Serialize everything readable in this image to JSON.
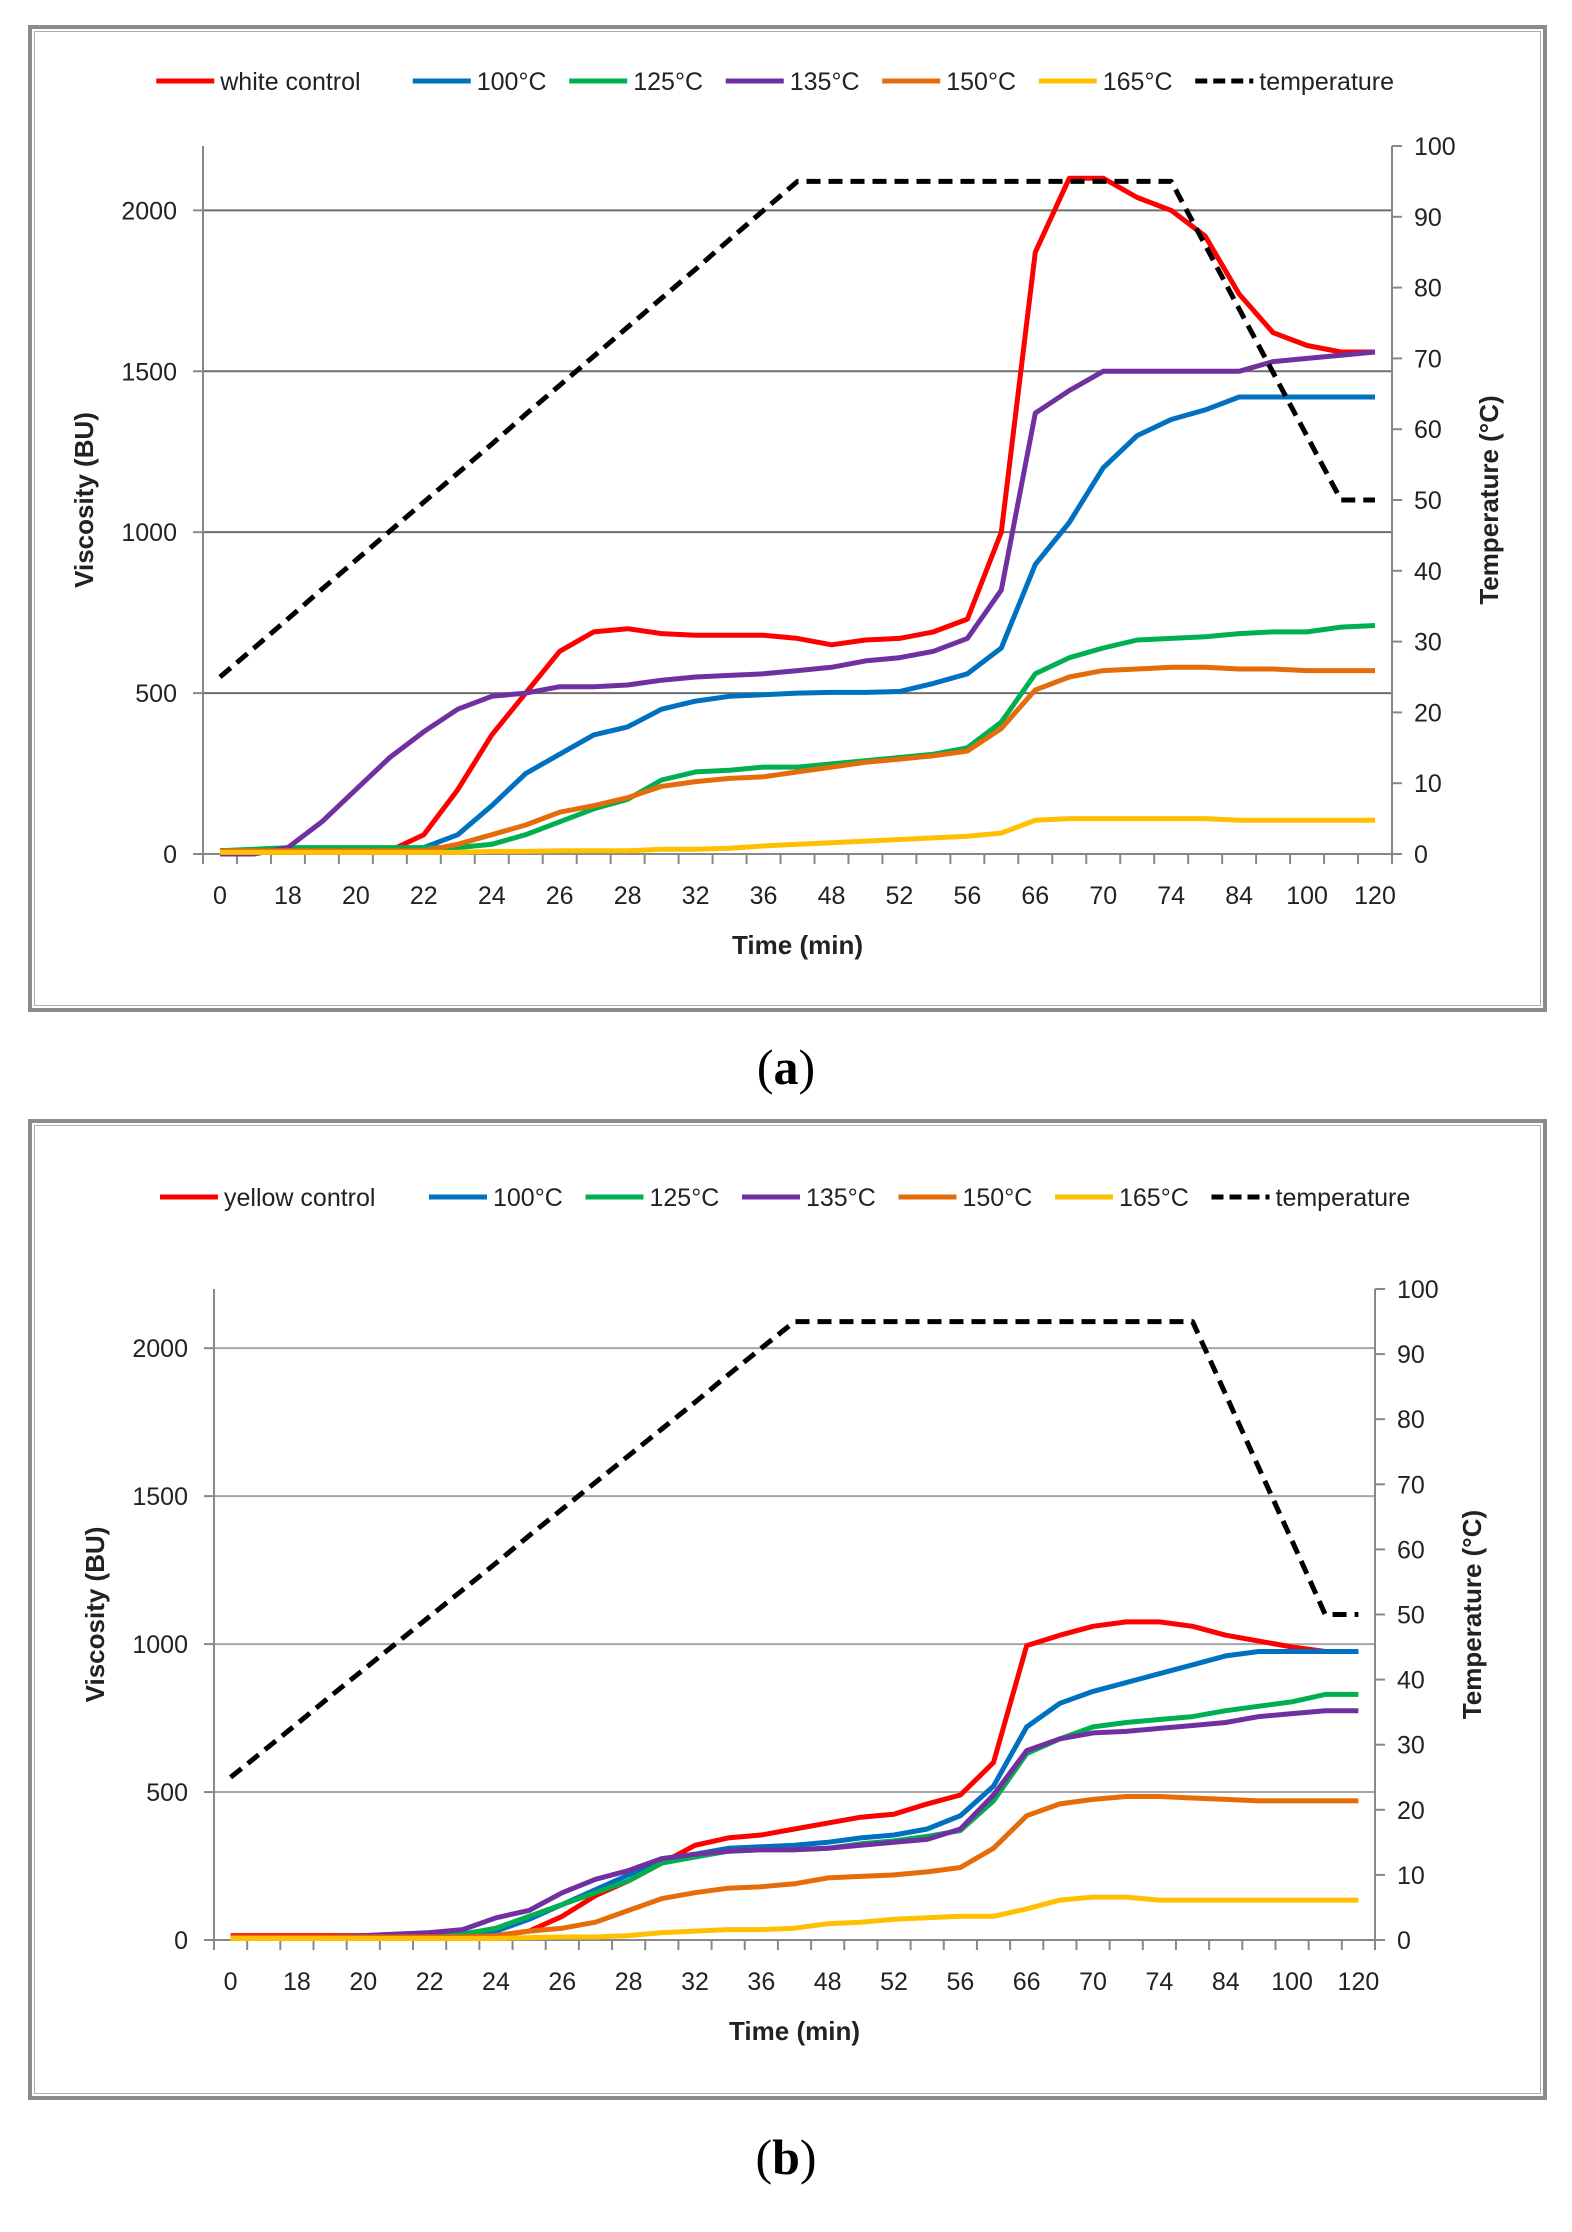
{
  "panels": [
    {
      "label_open": "(",
      "label_letter": "a",
      "label_close": ")"
    },
    {
      "label_open": "(",
      "label_letter": "b",
      "label_close": ")"
    }
  ],
  "chart_data": [
    {
      "type": "line",
      "xlabel": "Time (min)",
      "ylabel": "Viscosity (BU)",
      "y2label": "Temperature (°C)",
      "ylim": [
        0,
        2200
      ],
      "y2lim": [
        0,
        100
      ],
      "yticks": [
        0,
        500,
        1000,
        1500,
        2000
      ],
      "y2ticks": [
        0,
        10,
        20,
        30,
        40,
        50,
        60,
        70,
        80,
        90,
        100
      ],
      "x_tick_labels": [
        "0",
        "18",
        "20",
        "22",
        "24",
        "26",
        "28",
        "32",
        "36",
        "48",
        "52",
        "56",
        "66",
        "70",
        "74",
        "84",
        "100",
        "120"
      ],
      "n_points": 35,
      "grid": "horizontal",
      "legend_position": "top",
      "series": [
        {
          "name": "white control",
          "color": "#ff0000",
          "style": "solid",
          "axis": "left",
          "values": [
            10,
            10,
            10,
            10,
            10,
            10,
            60,
            200,
            370,
            500,
            630,
            690,
            700,
            685,
            680,
            680,
            680,
            670,
            650,
            665,
            670,
            690,
            730,
            1000,
            1870,
            2100,
            2100,
            2040,
            2000,
            1920,
            1740,
            1620,
            1580,
            1560,
            1560
          ]
        },
        {
          "name": "100°C",
          "color": "#0070c0",
          "style": "solid",
          "axis": "left",
          "values": [
            10,
            10,
            10,
            10,
            10,
            10,
            20,
            60,
            150,
            250,
            310,
            370,
            395,
            450,
            475,
            490,
            495,
            500,
            502,
            502,
            505,
            530,
            560,
            640,
            900,
            1030,
            1200,
            1300,
            1350,
            1380,
            1420,
            1420,
            1420,
            1420,
            1420
          ]
        },
        {
          "name": "125°C",
          "color": "#00b050",
          "style": "solid",
          "axis": "left",
          "values": [
            10,
            15,
            20,
            20,
            20,
            20,
            20,
            20,
            30,
            60,
            100,
            140,
            170,
            230,
            255,
            260,
            270,
            270,
            280,
            290,
            300,
            310,
            330,
            410,
            560,
            610,
            640,
            665,
            670,
            675,
            685,
            690,
            690,
            705,
            710
          ]
        },
        {
          "name": "135°C",
          "color": "#7030a0",
          "style": "solid",
          "axis": "left",
          "values": [
            0,
            0,
            20,
            100,
            200,
            300,
            380,
            450,
            490,
            500,
            520,
            520,
            525,
            540,
            550,
            555,
            560,
            570,
            580,
            600,
            610,
            630,
            670,
            820,
            1370,
            1440,
            1500,
            1500,
            1500,
            1500,
            1500,
            1530,
            1540,
            1550,
            1560
          ]
        },
        {
          "name": "150°C",
          "color": "#e46c0a",
          "style": "solid",
          "axis": "left",
          "values": [
            10,
            10,
            10,
            10,
            10,
            10,
            10,
            30,
            60,
            90,
            130,
            150,
            175,
            210,
            225,
            235,
            240,
            255,
            270,
            285,
            295,
            305,
            320,
            390,
            510,
            550,
            570,
            575,
            580,
            580,
            575,
            575,
            570,
            570,
            570
          ]
        },
        {
          "name": "165°C",
          "color": "#ffc000",
          "style": "solid",
          "axis": "left",
          "values": [
            5,
            5,
            5,
            5,
            5,
            5,
            5,
            5,
            8,
            8,
            10,
            10,
            10,
            15,
            15,
            18,
            25,
            30,
            35,
            40,
            45,
            50,
            55,
            65,
            105,
            110,
            110,
            110,
            110,
            110,
            105,
            105,
            105,
            105,
            105
          ]
        },
        {
          "name": "temperature",
          "color": "#000000",
          "style": "dashed",
          "axis": "right",
          "values": [
            25,
            29.1,
            33.2,
            37.4,
            41.5,
            45.6,
            49.7,
            53.8,
            57.9,
            62.1,
            66.2,
            70.3,
            74.4,
            78.5,
            82.6,
            86.8,
            90.9,
            95,
            95,
            95,
            95,
            95,
            95,
            95,
            95,
            95,
            95,
            95,
            95,
            86,
            77,
            68,
            59,
            50,
            50
          ]
        }
      ]
    },
    {
      "type": "line",
      "xlabel": "Time (min)",
      "ylabel": "Viscosity (BU)",
      "y2label": "Temperature (°C)",
      "ylim": [
        0,
        2200
      ],
      "y2lim": [
        0,
        100
      ],
      "yticks": [
        0,
        500,
        1000,
        1500,
        2000
      ],
      "y2ticks": [
        0,
        10,
        20,
        30,
        40,
        50,
        60,
        70,
        80,
        90,
        100
      ],
      "x_tick_labels": [
        "0",
        "18",
        "20",
        "22",
        "24",
        "26",
        "28",
        "32",
        "36",
        "48",
        "52",
        "56",
        "66",
        "70",
        "74",
        "84",
        "100",
        "120"
      ],
      "n_points": 35,
      "grid": "horizontal",
      "legend_position": "top",
      "series": [
        {
          "name": "yellow control",
          "color": "#ff0000",
          "style": "solid",
          "axis": "left",
          "values": [
            15,
            15,
            15,
            15,
            15,
            15,
            15,
            15,
            15,
            30,
            80,
            150,
            200,
            260,
            320,
            345,
            355,
            375,
            395,
            415,
            425,
            460,
            490,
            600,
            995,
            1030,
            1060,
            1075,
            1075,
            1060,
            1030,
            1010,
            990,
            975,
            975
          ]
        },
        {
          "name": "100°C",
          "color": "#0070c0",
          "style": "solid",
          "axis": "left",
          "values": [
            10,
            10,
            10,
            10,
            10,
            15,
            15,
            20,
            30,
            70,
            120,
            170,
            220,
            270,
            290,
            310,
            315,
            320,
            330,
            345,
            355,
            375,
            420,
            520,
            720,
            800,
            840,
            870,
            900,
            930,
            960,
            975,
            975,
            975,
            975
          ]
        },
        {
          "name": "125°C",
          "color": "#00b050",
          "style": "solid",
          "axis": "left",
          "values": [
            10,
            10,
            10,
            10,
            10,
            15,
            15,
            20,
            40,
            80,
            120,
            160,
            200,
            260,
            280,
            300,
            305,
            305,
            310,
            325,
            335,
            350,
            370,
            470,
            630,
            680,
            720,
            735,
            745,
            755,
            775,
            790,
            805,
            830,
            830
          ]
        },
        {
          "name": "135°C",
          "color": "#7030a0",
          "style": "solid",
          "axis": "left",
          "values": [
            10,
            10,
            10,
            10,
            15,
            20,
            25,
            35,
            75,
            100,
            160,
            205,
            235,
            275,
            290,
            300,
            305,
            305,
            310,
            320,
            330,
            340,
            375,
            490,
            640,
            680,
            700,
            705,
            715,
            725,
            735,
            755,
            765,
            775,
            775
          ]
        },
        {
          "name": "150°C",
          "color": "#e46c0a",
          "style": "solid",
          "axis": "left",
          "values": [
            10,
            10,
            10,
            10,
            10,
            10,
            10,
            10,
            15,
            30,
            40,
            60,
            100,
            140,
            160,
            175,
            180,
            190,
            210,
            215,
            220,
            230,
            245,
            310,
            420,
            460,
            475,
            485,
            485,
            480,
            475,
            470,
            470,
            470,
            470
          ]
        },
        {
          "name": "165°C",
          "color": "#ffc000",
          "style": "solid",
          "axis": "left",
          "values": [
            5,
            5,
            5,
            5,
            5,
            5,
            5,
            5,
            5,
            8,
            10,
            10,
            15,
            25,
            30,
            35,
            35,
            40,
            55,
            60,
            70,
            75,
            80,
            80,
            105,
            135,
            145,
            145,
            135,
            135,
            135,
            135,
            135,
            135,
            135
          ]
        },
        {
          "name": "temperature",
          "color": "#000000",
          "style": "dashed",
          "axis": "right",
          "values": [
            25,
            29.1,
            33.2,
            37.4,
            41.5,
            45.6,
            49.7,
            53.8,
            57.9,
            62.1,
            66.2,
            70.3,
            74.4,
            78.5,
            82.6,
            86.8,
            90.9,
            95,
            95,
            95,
            95,
            95,
            95,
            95,
            95,
            95,
            95,
            95,
            95,
            95,
            83.8,
            72.5,
            61.3,
            50,
            50
          ]
        }
      ]
    }
  ]
}
